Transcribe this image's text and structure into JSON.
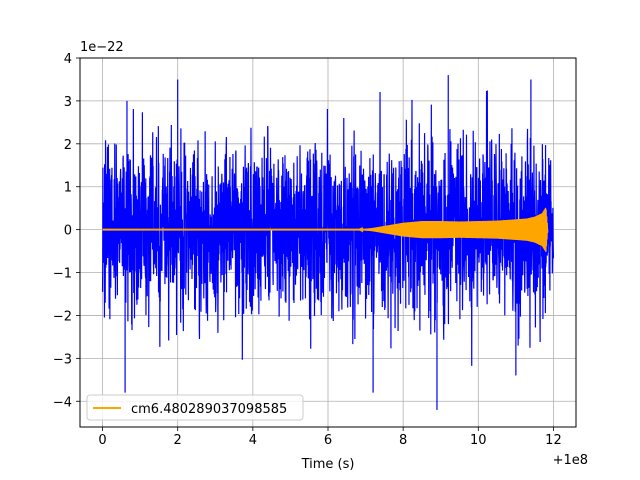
{
  "chart_data": {
    "type": "line",
    "title": "",
    "xlabel": "Time (s)",
    "ylabel": "",
    "x_offset_label": "+1e8",
    "y_scale_label": "1e−22",
    "xlim": [
      -0.6,
      12.6
    ],
    "ylim": [
      -4.6,
      4.0
    ],
    "x_ticks": [
      0,
      2,
      4,
      6,
      8,
      10,
      12
    ],
    "x_tick_labels": [
      "0",
      "2",
      "4",
      "6",
      "8",
      "10",
      "12"
    ],
    "y_ticks": [
      4,
      3,
      2,
      1,
      0,
      -1,
      -2,
      -3,
      -4
    ],
    "y_tick_labels": [
      "4",
      "3",
      "2",
      "1",
      "0",
      "−1",
      "−2",
      "−3",
      "−4"
    ],
    "grid": true,
    "legend_position": "lower-left",
    "series": [
      {
        "color": "#0000ff",
        "kind": "noise strain",
        "x_range": [
          0,
          12
        ],
        "typical_amplitude": 1.6,
        "peak_max": 3.6,
        "peak_min": -4.2
      },
      {
        "name": "cm6.480289037098585",
        "color": "#ffa500",
        "kind": "chirp signal",
        "x_range": [
          0,
          11.85
        ],
        "x": [
          0,
          6.8,
          7.2,
          7.6,
          8.0,
          8.5,
          9.0,
          9.5,
          10.0,
          10.5,
          11.0,
          11.3,
          11.5,
          11.7,
          11.8,
          11.85
        ],
        "envelope": [
          0,
          0.0,
          0.04,
          0.1,
          0.16,
          0.2,
          0.2,
          0.19,
          0.2,
          0.21,
          0.24,
          0.26,
          0.3,
          0.38,
          0.52,
          0.0
        ]
      }
    ]
  }
}
